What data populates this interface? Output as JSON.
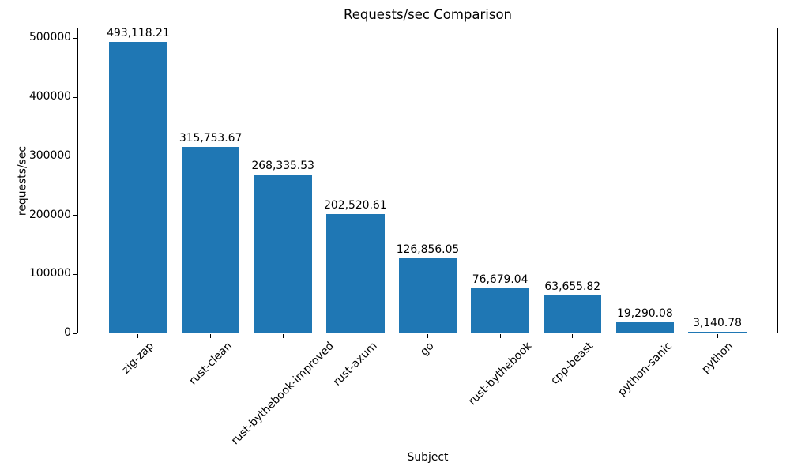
{
  "chart_data": {
    "type": "bar",
    "title": "Requests/sec Comparison",
    "xlabel": "Subject",
    "ylabel": "requests/sec",
    "categories": [
      "zig-zap",
      "rust-clean",
      "rust-bythebook-improved",
      "rust-axum",
      "go",
      "rust-bythebook",
      "cpp-beast",
      "python-sanic",
      "python"
    ],
    "values": [
      493118.21,
      315753.67,
      268335.53,
      202520.61,
      126856.05,
      76679.04,
      63655.82,
      19290.08,
      3140.78
    ],
    "bar_labels": [
      "493,118.21",
      "315,753.67",
      "268,335.53",
      "202,520.61",
      "126,856.05",
      "76,679.04",
      "63,655.82",
      "19,290.08",
      "3,140.78"
    ],
    "bar_color": "#1f77b4",
    "text_color": "#000000",
    "spine_color": "#000000",
    "background_color": "#ffffff",
    "ylim": [
      0,
      517774
    ],
    "yticks": [
      0,
      100000,
      200000,
      300000,
      400000,
      500000
    ],
    "ytick_labels": [
      "0",
      "100000",
      "200000",
      "300000",
      "400000",
      "500000"
    ],
    "grid": false,
    "legend": null
  }
}
